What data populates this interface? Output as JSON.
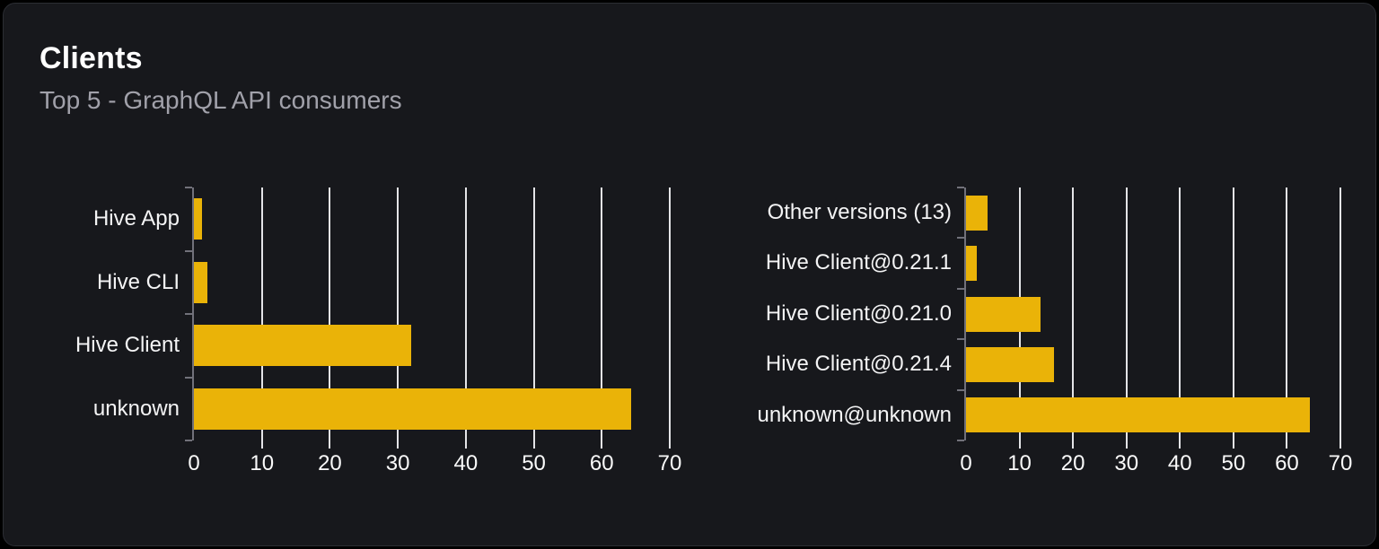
{
  "page": {
    "title": "Clients",
    "subtitle": "Top 5 - GraphQL API consumers"
  },
  "colors": {
    "page_bg": "#000000",
    "card_bg": "#17181c",
    "card_border": "#2b2d33",
    "bar": "#eab308",
    "grid": "#e4e4e7",
    "axis": "#71717a",
    "tick_text": "#fafafa",
    "category_text": "#f4f4f5",
    "title_text": "#ffffff",
    "subtitle_text": "#a1a1aa"
  },
  "chart_data": [
    {
      "type": "bar",
      "orientation": "horizontal",
      "title": "Clients",
      "subtitle": "Top 5 - GraphQL API consumers",
      "categories": [
        "Hive App",
        "Hive CLI",
        "Hive Client",
        "unknown"
      ],
      "values": [
        1.2,
        2,
        32,
        64.3
      ],
      "xlim": [
        0,
        70
      ],
      "xticks": [
        0,
        10,
        20,
        30,
        40,
        50,
        60,
        70
      ],
      "xlabel": "",
      "ylabel": "",
      "grid": "vertical",
      "legend": false,
      "bar_color": "#eab308"
    },
    {
      "type": "bar",
      "orientation": "horizontal",
      "title": "",
      "subtitle": "",
      "categories": [
        "Other versions (13)",
        "Hive Client@0.21.1",
        "Hive Client@0.21.0",
        "Hive Client@0.21.4",
        "unknown@unknown"
      ],
      "values": [
        4,
        2,
        13.9,
        16.5,
        64.3
      ],
      "xlim": [
        0,
        70
      ],
      "xticks": [
        0,
        10,
        20,
        30,
        40,
        50,
        60,
        70
      ],
      "xlabel": "",
      "ylabel": "",
      "grid": "vertical",
      "legend": false,
      "bar_color": "#eab308"
    }
  ]
}
